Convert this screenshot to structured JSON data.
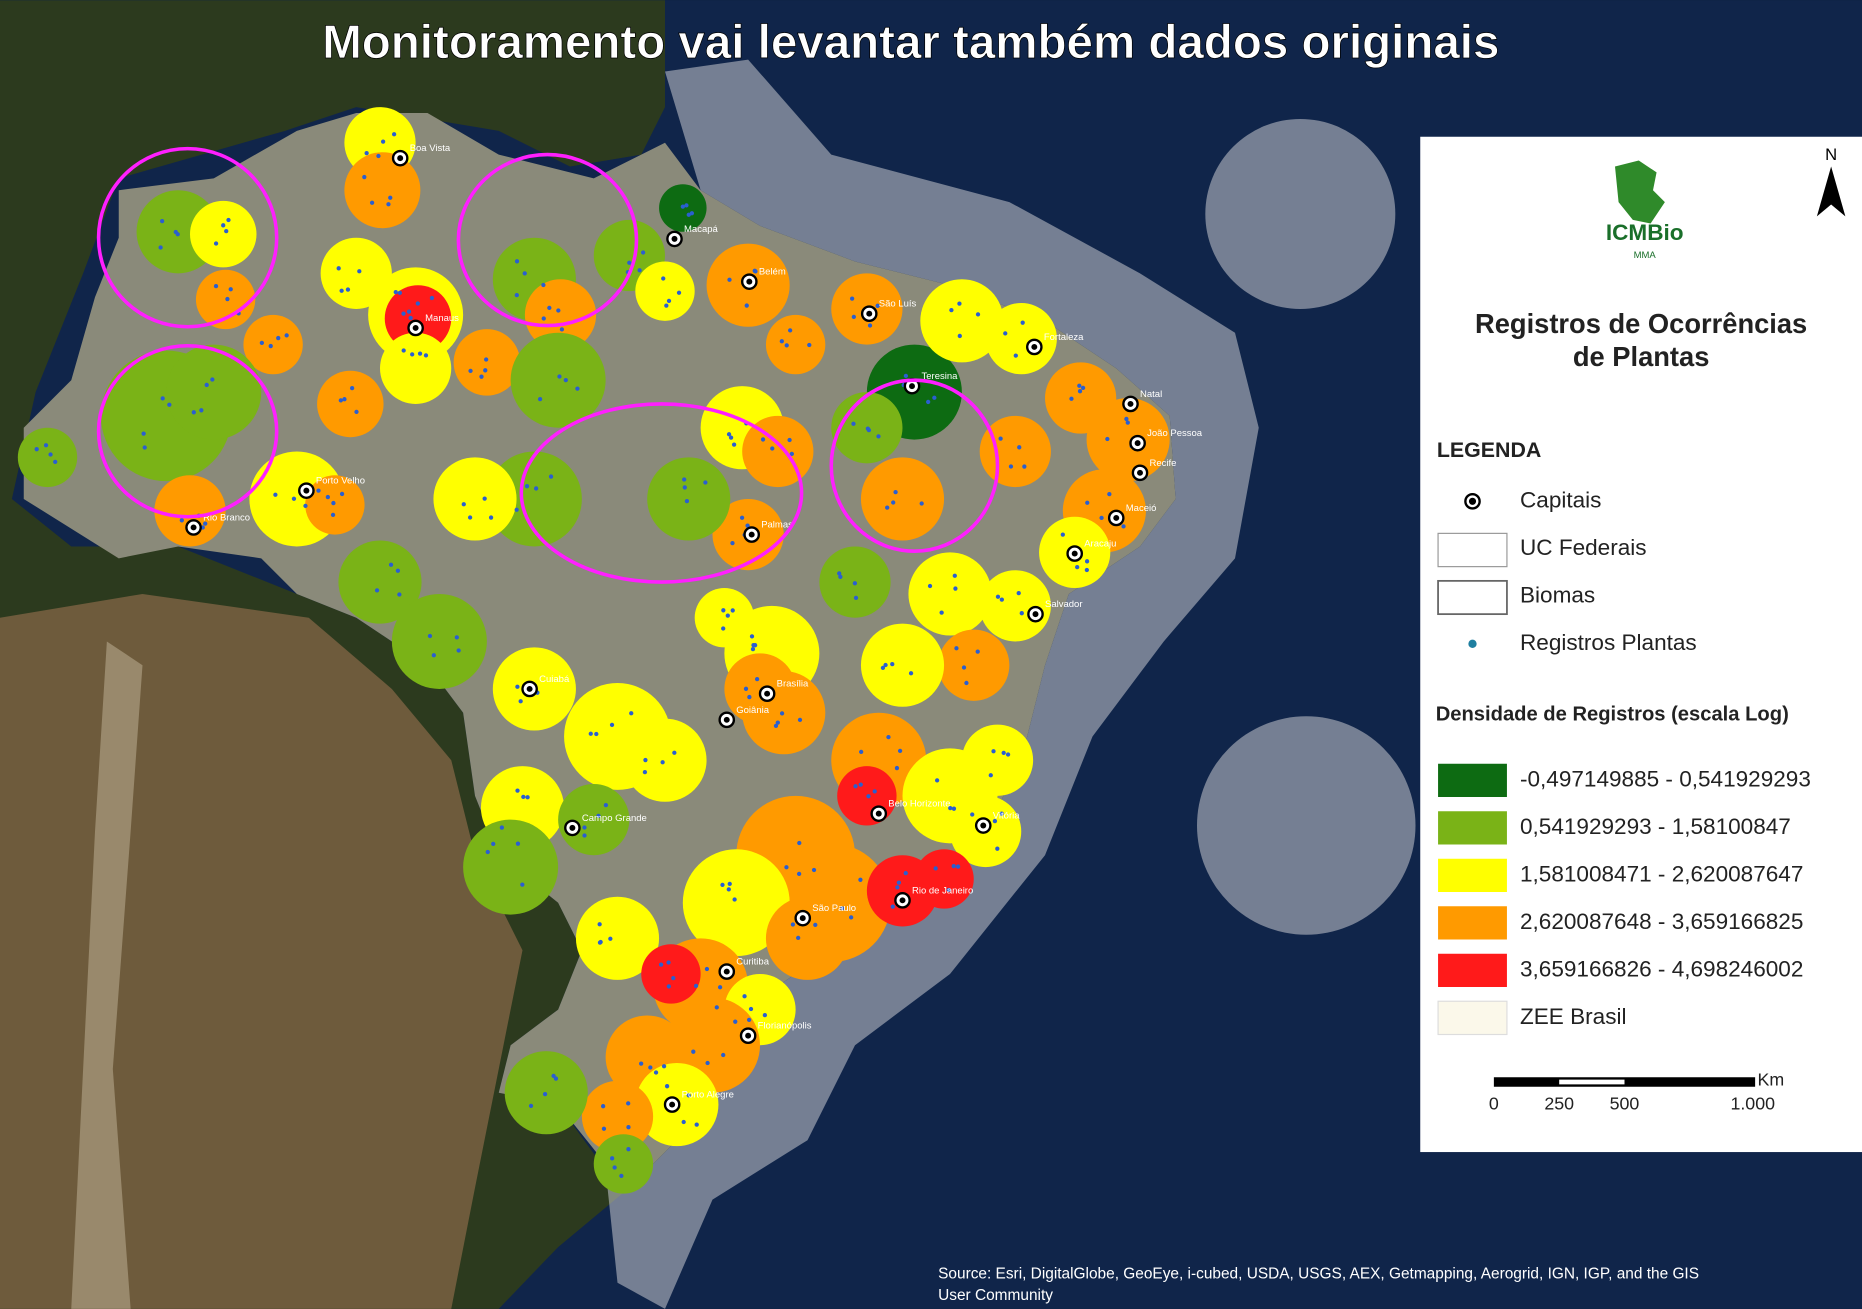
{
  "title": "Monitoramento vai levantar também dados originais",
  "map": {
    "capitals": [
      "Boa Vista",
      "Macapá",
      "Belém",
      "São Luís",
      "Fortaleza",
      "Manaus",
      "Teresina",
      "Natal",
      "João Pessoa",
      "Recife",
      "Maceió",
      "Aracaju",
      "Palmas",
      "Porto Velho",
      "Rio Branco",
      "Salvador",
      "Cuiabá",
      "Brasília",
      "Goiânia",
      "Belo Horizonte",
      "Vitória",
      "Campo Grande",
      "Rio de Janeiro",
      "São Paulo",
      "Curitiba",
      "Florianópolis",
      "Porto Alegre"
    ]
  },
  "legend": {
    "logo": {
      "name": "ICMBio",
      "sub": "MMA"
    },
    "north": "N",
    "heading": [
      "Registros de Ocorrências",
      "de Plantas"
    ],
    "section": "LEGENDA",
    "items": [
      "Capitais",
      "UC Federais",
      "Biomas",
      "Registros Plantas"
    ],
    "density": {
      "title": "Densidade de Registros (escala Log)",
      "classes": [
        {
          "label": "-0,497149885 - 0,541929293",
          "color": "#0d6b12"
        },
        {
          "label": "0,541929293 - 1,58100847",
          "color": "#7ab317"
        },
        {
          "label": "1,581008471 - 2,620087647",
          "color": "#ffff00"
        },
        {
          "label": "2,620087648 - 3,659166825",
          "color": "#ff9a00"
        },
        {
          "label": "3,659166826 - 4,698246002",
          "color": "#ff1a1a"
        }
      ]
    },
    "zee": {
      "label": "ZEE Brasil",
      "color": "#fbf8ea"
    },
    "scale": {
      "unit": "Km",
      "ticks": [
        "0",
        "250",
        "500",
        "1.000"
      ]
    }
  },
  "source": [
    "Source: Esri, DigitalGlobe, GeoEye, i-cubed, USDA, USGS, AEX, Getmapping, Aerogrid, IGN, IGP, and the GIS",
    "User Community"
  ]
}
